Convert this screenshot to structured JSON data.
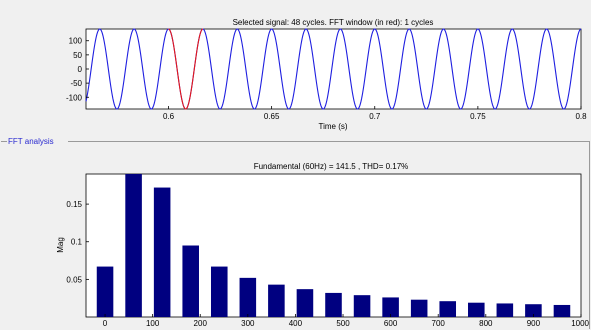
{
  "signal_panel": {
    "title": "Selected signal: 48 cycles. FFT window (in red): 1 cycles",
    "xlabel": "Time (s)",
    "colors": {
      "signal": "#1f1fe0",
      "window": "#e81818",
      "axis": "#000000"
    }
  },
  "fft_panel": {
    "group_label": "FFT analysis",
    "colors": {
      "bar": "#000080",
      "axis": "#000000",
      "group_label": "#2a2ad0"
    }
  },
  "chart_data": [
    {
      "type": "line",
      "title": "Selected signal: 48 cycles. FFT window (in red): 1 cycles",
      "xlabel": "Time (s)",
      "ylabel": "",
      "xlim": [
        0.56,
        0.8
      ],
      "ylim": [
        -141.5,
        141.5
      ],
      "xticks": [
        "0.6",
        "0.65",
        "0.7",
        "0.75",
        "0.8"
      ],
      "xtick_values": [
        0.6,
        0.65,
        0.7,
        0.75,
        0.8
      ],
      "yticks": [
        "100",
        "50",
        "0",
        "-50",
        "-100"
      ],
      "ytick_values": [
        100,
        50,
        0,
        -50,
        -100
      ],
      "series": [
        {
          "frequency_hz": 60,
          "amplitude": 141.5,
          "phase_deg": 0,
          "t_start": 0.56,
          "t_end": 0.8
        },
        {
          "frequency_hz": 60,
          "amplitude": 141.5,
          "phase_deg": 0,
          "t_start": 0.6,
          "t_end": 0.6167
        }
      ]
    },
    {
      "type": "bar",
      "title": "Fundamental (60Hz) = 141.5 , THD= 0.17%",
      "xlabel": "",
      "ylabel": "Mag",
      "x": [
        0,
        60,
        120,
        180,
        240,
        300,
        360,
        420,
        480,
        540,
        600,
        660,
        720,
        780,
        840,
        900,
        960
      ],
      "values": [
        0.067,
        0.19,
        0.172,
        0.095,
        0.067,
        0.052,
        0.043,
        0.037,
        0.032,
        0.029,
        0.026,
        0.023,
        0.021,
        0.019,
        0.018,
        0.017,
        0.016
      ],
      "xlim": [
        -40,
        1000
      ],
      "ylim": [
        0,
        0.19
      ],
      "xticks": [
        "0",
        "100",
        "200",
        "300",
        "400",
        "500",
        "600",
        "700",
        "800",
        "900",
        "1000"
      ],
      "xtick_values": [
        0,
        100,
        200,
        300,
        400,
        500,
        600,
        700,
        800,
        900,
        1000
      ],
      "yticks": [
        "0.15",
        "0.1",
        "0.05"
      ],
      "ytick_values": [
        0.15,
        0.1,
        0.05
      ]
    }
  ]
}
